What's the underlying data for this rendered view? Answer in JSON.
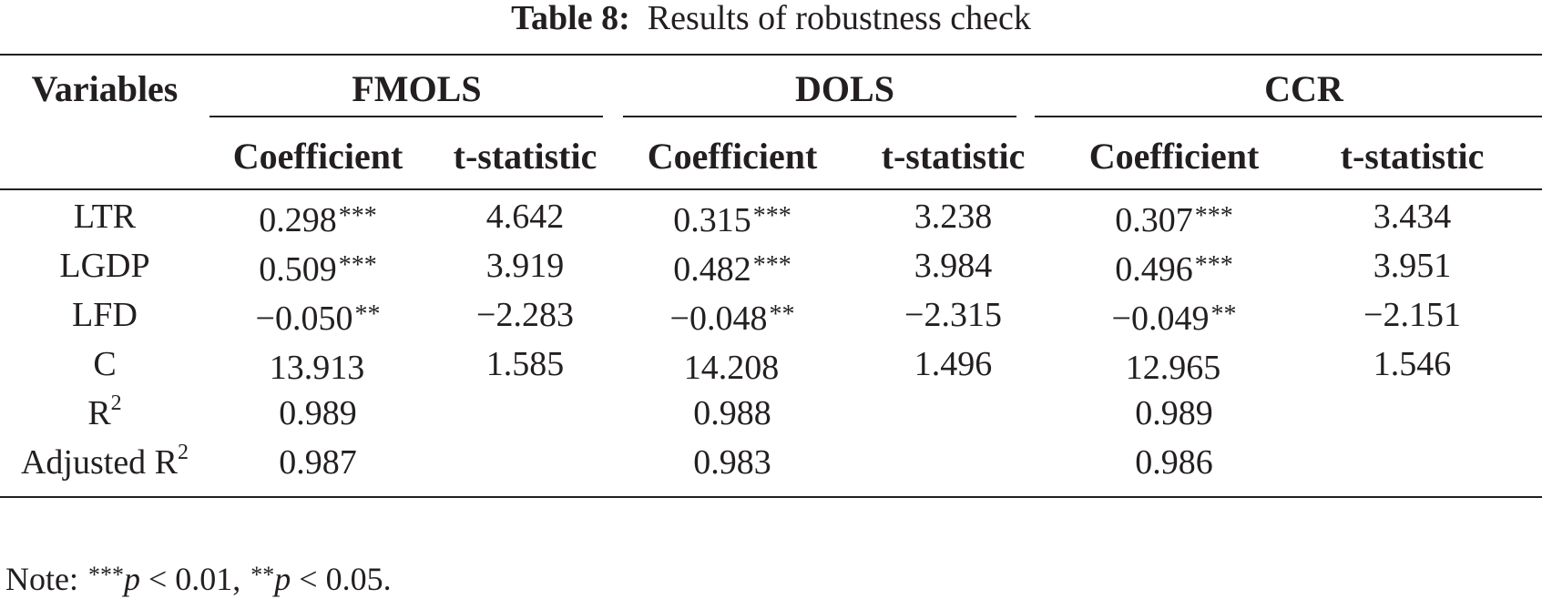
{
  "caption": {
    "label": "Table 8:",
    "title": "Results of robustness check"
  },
  "table": {
    "first_col_header": "Variables",
    "groups": [
      "FMOLS",
      "DOLS",
      "CCR"
    ],
    "subheaders": [
      "Coefficient",
      "t-statistic",
      "Coefficient",
      "t-statistic",
      "Coefficient",
      "t-statistic"
    ],
    "rows": [
      {
        "variable": "LTR",
        "cells": [
          {
            "value": "0.298",
            "stars": "***"
          },
          {
            "value": "4.642",
            "stars": ""
          },
          {
            "value": "0.315",
            "stars": "***"
          },
          {
            "value": "3.238",
            "stars": ""
          },
          {
            "value": "0.307",
            "stars": "***"
          },
          {
            "value": "3.434",
            "stars": ""
          }
        ]
      },
      {
        "variable": "LGDP",
        "cells": [
          {
            "value": "0.509",
            "stars": "***"
          },
          {
            "value": "3.919",
            "stars": ""
          },
          {
            "value": "0.482",
            "stars": "***"
          },
          {
            "value": "3.984",
            "stars": ""
          },
          {
            "value": "0.496",
            "stars": "***"
          },
          {
            "value": "3.951",
            "stars": ""
          }
        ]
      },
      {
        "variable": "LFD",
        "cells": [
          {
            "value": "−0.050",
            "stars": "**"
          },
          {
            "value": "−2.283",
            "stars": ""
          },
          {
            "value": "−0.048",
            "stars": "**"
          },
          {
            "value": "−2.315",
            "stars": ""
          },
          {
            "value": "−0.049",
            "stars": "**"
          },
          {
            "value": "−2.151",
            "stars": ""
          }
        ]
      },
      {
        "variable": "C",
        "cells": [
          {
            "value": "13.913",
            "stars": ""
          },
          {
            "value": "1.585",
            "stars": ""
          },
          {
            "value": "14.208",
            "stars": ""
          },
          {
            "value": "1.496",
            "stars": ""
          },
          {
            "value": "12.965",
            "stars": ""
          },
          {
            "value": "1.546",
            "stars": ""
          }
        ]
      }
    ],
    "fit_rows": [
      {
        "label": "R",
        "sup": "2",
        "values": [
          "0.989",
          "0.988",
          "0.989"
        ]
      },
      {
        "label": "Adjusted R",
        "sup": "2",
        "values": [
          "0.987",
          "0.983",
          "0.986"
        ]
      }
    ]
  },
  "note": {
    "prefix": "Note: ",
    "items": [
      {
        "stars": "***",
        "p": "p",
        "rest": " < 0.01, "
      },
      {
        "stars": "**",
        "p": "p",
        "rest": " < 0.05."
      }
    ]
  }
}
